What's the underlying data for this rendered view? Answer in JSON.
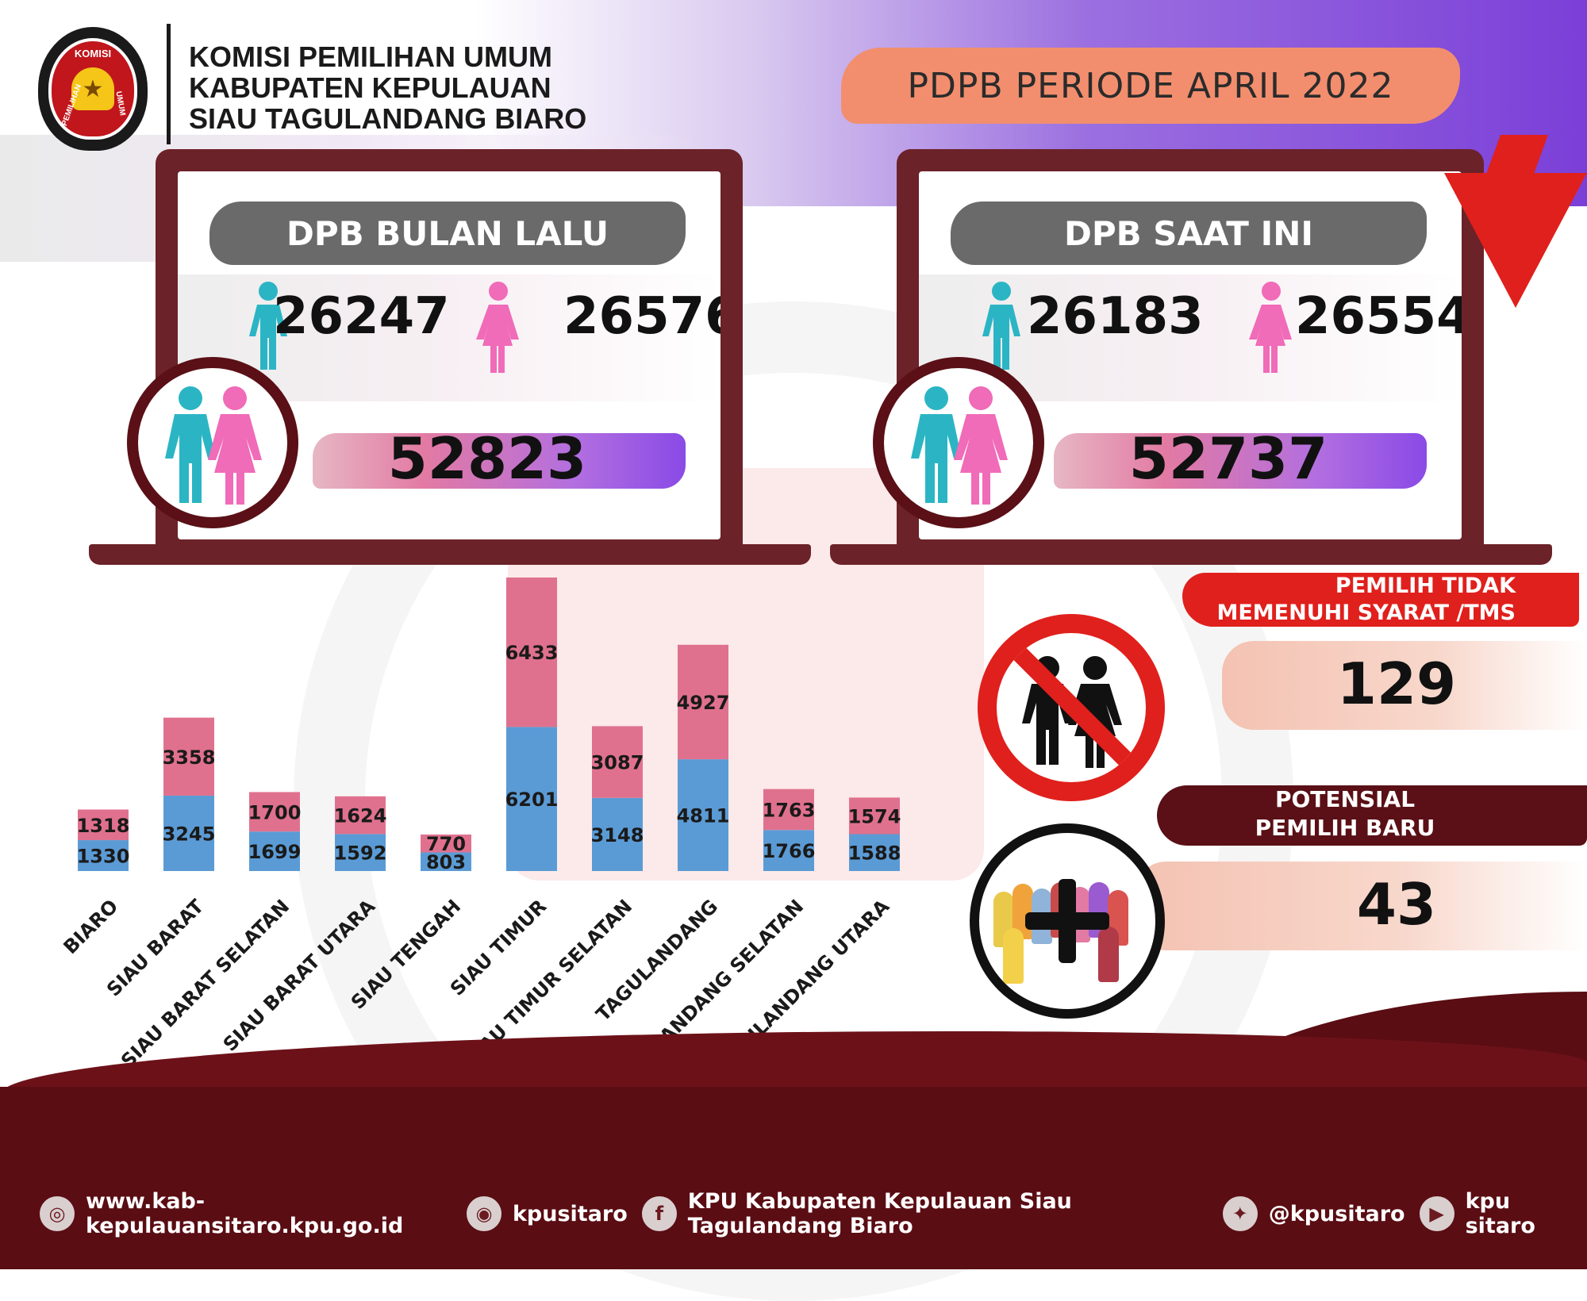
{
  "header": {
    "logo_top": "KOMISI",
    "logo_left": "PEMILIHAN",
    "logo_right": "UMUM",
    "org_line1": "KOMISI PEMILIHAN UMUM",
    "org_line2": "KABUPATEN KEPULAUAN",
    "org_line3": "SIAU TAGULANDANG BIARO",
    "period": "PDPB PERIODE APRIL 2022"
  },
  "prev": {
    "title": "DPB BULAN LALU",
    "male": "26247",
    "female": "26576",
    "total": "52823"
  },
  "current": {
    "title": "DPB SAAT INI",
    "male": "26183",
    "female": "26554",
    "total": "52737",
    "trend_icon": "down-arrow-icon"
  },
  "tms": {
    "title_line1": "PEMILIH TIDAK",
    "title_line2": "MEMENUHI SYARAT /TMS",
    "value": "129"
  },
  "potensial": {
    "title_line1": "POTENSIAL",
    "title_line2": "PEMILIH BARU",
    "value": "43"
  },
  "chart_data": {
    "type": "bar",
    "stacked": true,
    "categories": [
      "BIARO",
      "SIAU BARAT",
      "SIAU BARAT SELATAN",
      "SIAU BARAT UTARA",
      "SIAU TENGAH",
      "SIAU TIMUR",
      "SIAU TIMUR SELATAN",
      "TAGULANDANG",
      "TAGULANDANG SELATAN",
      "TAGULANDANG UTARA"
    ],
    "series": [
      {
        "color": "#5b9bd5",
        "values": [
          1330,
          3245,
          1699,
          1592,
          803,
          6201,
          3148,
          4811,
          1766,
          1588
        ]
      },
      {
        "color": "#e0718e",
        "values": [
          1318,
          3358,
          1700,
          1624,
          770,
          6433,
          3087,
          4927,
          1763,
          1574
        ]
      }
    ],
    "title": "",
    "xlabel": "",
    "ylabel": "",
    "ylim": [
      0,
      13000
    ],
    "grid": false
  },
  "colors": {
    "male": "#2bb5c4",
    "female": "#f06bb8",
    "maroon": "#5a1016",
    "red": "#e0201c",
    "accent_orange": "#f28e6e"
  },
  "footer": {
    "website": "www.kab-kepulauansitaro.kpu.go.id",
    "instagram": "kpusitaro",
    "facebook": "KPU Kabupaten Kepulauan Siau Tagulandang Biaro",
    "twitter": "@kpusitaro",
    "youtube": "kpu sitaro",
    "icons": [
      "globe-icon",
      "instagram-icon",
      "facebook-icon",
      "twitter-icon",
      "youtube-icon"
    ]
  }
}
